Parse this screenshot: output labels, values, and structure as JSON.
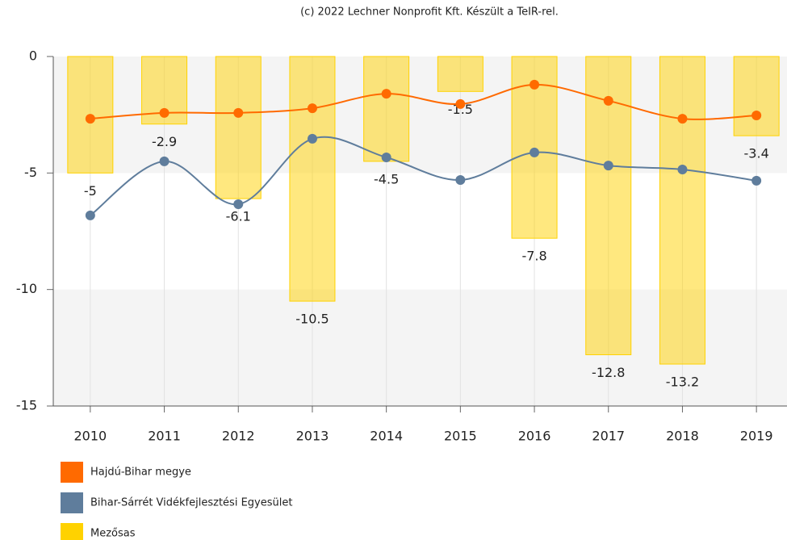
{
  "chart_data": {
    "type": "bar",
    "credits": "(c) 2022 Lechner Nonprofit Kft. Készült a TeIR-rel.",
    "categories": [
      "2010",
      "2011",
      "2012",
      "2013",
      "2014",
      "2015",
      "2016",
      "2017",
      "2018",
      "2019"
    ],
    "series": [
      {
        "name": "Hajdú-Bihar megye",
        "type": "line",
        "color": "#ff6a00",
        "values": [
          -2.67,
          -2.42,
          -2.42,
          -2.22,
          -1.6,
          -2.04,
          -1.21,
          -1.9,
          -2.67,
          -2.53
        ]
      },
      {
        "name": "Bihar-Sárrét Vidékfejlesztési Egyesület",
        "type": "line",
        "color": "#5f7d9c",
        "values": [
          -6.82,
          -4.5,
          -6.34,
          -3.53,
          -4.33,
          -5.3,
          -4.12,
          -4.68,
          -4.85,
          -5.33
        ]
      },
      {
        "name": "Mezősas",
        "type": "bar",
        "color": "#ffd200",
        "values": [
          -5,
          -2.9,
          -6.1,
          -10.5,
          -4.5,
          -1.5,
          -7.8,
          -12.8,
          -13.2,
          -3.4
        ]
      }
    ],
    "ylim": [
      -15,
      0
    ],
    "yticks": [
      0,
      -5,
      -10,
      -15
    ],
    "grid": true,
    "legend": "bottom-left"
  }
}
